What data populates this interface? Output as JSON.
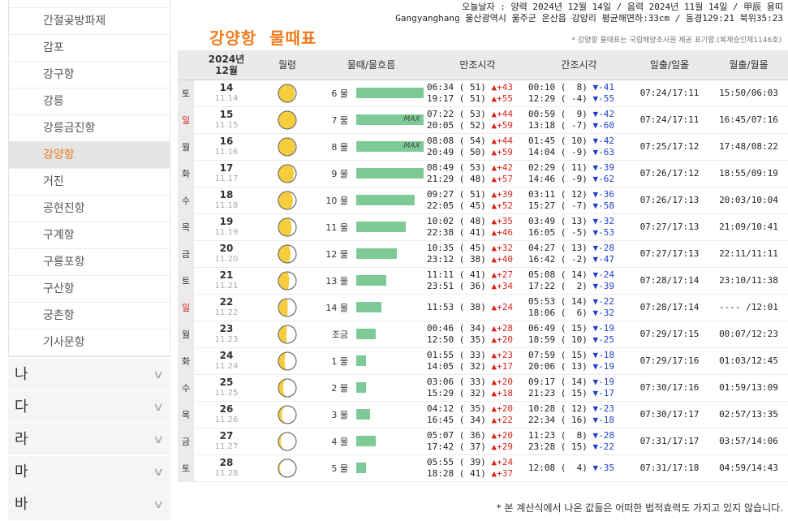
{
  "sidebar": {
    "harbors": [
      {
        "label": "간절곶방파제",
        "active": false
      },
      {
        "label": "감포",
        "active": false
      },
      {
        "label": "강구항",
        "active": false
      },
      {
        "label": "강릉",
        "active": false
      },
      {
        "label": "강릉금진항",
        "active": false
      },
      {
        "label": "강양항",
        "active": true
      },
      {
        "label": "거진",
        "active": false
      },
      {
        "label": "공현진항",
        "active": false
      },
      {
        "label": "구계항",
        "active": false
      },
      {
        "label": "구룡포항",
        "active": false
      },
      {
        "label": "구산항",
        "active": false
      },
      {
        "label": "궁촌항",
        "active": false
      },
      {
        "label": "기사문항",
        "active": false
      }
    ],
    "consonants": [
      "나",
      "다",
      "라",
      "마",
      "바"
    ]
  },
  "header": {
    "line1": "오늘날자 : 양력 2024년 12월 14일 / 음력 2024년 11월 14일 / 甲辰 용띠",
    "line2": "Gangyanghang 울산광역시 울주군 온산읍 강양리 평균해면하:33cm / 동경129:21 북위35:23"
  },
  "page": {
    "title": "강양항  물때표",
    "note": "* 강양항 물때표는 국립해양조사원 제공 표기함.(복제승인제1146호)",
    "footer": "* 본 계산식에서 나온 값들은 어떠한 법적효력도 가지고 있지 않습니다."
  },
  "table": {
    "headers": {
      "date_year": "2024년",
      "date_month": "12월",
      "moon": "월령",
      "flow": "물때/물흐름",
      "high": "만조시각",
      "low": "간조시각",
      "sun": "일출/일몰",
      "moonrise": "월출/월몰"
    },
    "rows": [
      {
        "weekday": "토",
        "weekday_color": "#333333",
        "day": "14",
        "lunar": "11.14",
        "moon_phase": 0.92,
        "flow": "6 물",
        "flow_level": 0.95,
        "max_label": "",
        "high": [
          {
            "time": "06:34",
            "height": "( 51)",
            "arrow": "▲",
            "diff": "+43"
          },
          {
            "time": "19:17",
            "height": "( 51)",
            "arrow": "▲",
            "diff": "+55"
          }
        ],
        "low": [
          {
            "time": "00:10",
            "height": "(  8)",
            "arrow": "▼",
            "diff": "-41"
          },
          {
            "time": "12:29",
            "height": "( -4)",
            "arrow": "▼",
            "diff": "-55"
          }
        ],
        "sun": "07:24/17:11",
        "moonrs": "15:50/06:03"
      },
      {
        "weekday": "일",
        "weekday_color": "#d6241b",
        "day": "15",
        "lunar": "11.15",
        "moon_phase": 1.0,
        "flow": "7 물",
        "flow_level": 0.95,
        "max_label": "MAX",
        "high": [
          {
            "time": "07:22",
            "height": "( 53)",
            "arrow": "▲",
            "diff": "+44"
          },
          {
            "time": "20:05",
            "height": "( 52)",
            "arrow": "▲",
            "diff": "+59"
          }
        ],
        "low": [
          {
            "time": "00:59",
            "height": "(  9)",
            "arrow": "▼",
            "diff": "-42"
          },
          {
            "time": "13:18",
            "height": "( -7)",
            "arrow": "▼",
            "diff": "-60"
          }
        ],
        "sun": "07:24/17:11",
        "moonrs": "16:45/07:16"
      },
      {
        "weekday": "월",
        "weekday_color": "#333333",
        "day": "16",
        "lunar": "11.16",
        "moon_phase": 0.95,
        "flow": "8 물",
        "flow_level": 0.95,
        "max_label": "MAX",
        "high": [
          {
            "time": "08:08",
            "height": "( 54)",
            "arrow": "▲",
            "diff": "+44"
          },
          {
            "time": "20:49",
            "height": "( 50)",
            "arrow": "▲",
            "diff": "+59"
          }
        ],
        "low": [
          {
            "time": "01:45",
            "height": "( 10)",
            "arrow": "▼",
            "diff": "-42"
          },
          {
            "time": "14:04",
            "height": "( -9)",
            "arrow": "▼",
            "diff": "-63"
          }
        ],
        "sun": "07:25/17:12",
        "moonrs": "17:48/08:22"
      },
      {
        "weekday": "화",
        "weekday_color": "#333333",
        "day": "17",
        "lunar": "11.17",
        "moon_phase": 0.88,
        "flow": "9 물",
        "flow_level": 0.95,
        "max_label": "",
        "high": [
          {
            "time": "08:49",
            "height": "( 53)",
            "arrow": "▲",
            "diff": "+42"
          },
          {
            "time": "21:29",
            "height": "( 48)",
            "arrow": "▲",
            "diff": "+57"
          }
        ],
        "low": [
          {
            "time": "02:29",
            "height": "( 11)",
            "arrow": "▼",
            "diff": "-39"
          },
          {
            "time": "14:46",
            "height": "( -9)",
            "arrow": "▼",
            "diff": "-62"
          }
        ],
        "sun": "07:26/17:12",
        "moonrs": "18:55/09:19"
      },
      {
        "weekday": "수",
        "weekday_color": "#333333",
        "day": "18",
        "lunar": "11.18",
        "moon_phase": 0.82,
        "flow": "10 물",
        "flow_level": 0.83,
        "max_label": "",
        "high": [
          {
            "time": "09:27",
            "height": "( 51)",
            "arrow": "▲",
            "diff": "+39"
          },
          {
            "time": "22:05",
            "height": "( 45)",
            "arrow": "▲",
            "diff": "+52"
          }
        ],
        "low": [
          {
            "time": "03:11",
            "height": "( 12)",
            "arrow": "▼",
            "diff": "-36"
          },
          {
            "time": "15:27",
            "height": "( -7)",
            "arrow": "▼",
            "diff": "-58"
          }
        ],
        "sun": "07:26/17:13",
        "moonrs": "20:03/10:04"
      },
      {
        "weekday": "목",
        "weekday_color": "#333333",
        "day": "19",
        "lunar": "11.19",
        "moon_phase": 0.75,
        "flow": "11 물",
        "flow_level": 0.7,
        "max_label": "",
        "high": [
          {
            "time": "10:02",
            "height": "( 48)",
            "arrow": "▲",
            "diff": "+35"
          },
          {
            "time": "22:38",
            "height": "( 41)",
            "arrow": "▲",
            "diff": "+46"
          }
        ],
        "low": [
          {
            "time": "03:49",
            "height": "( 13)",
            "arrow": "▼",
            "diff": "-32"
          },
          {
            "time": "16:05",
            "height": "( -5)",
            "arrow": "▼",
            "diff": "-53"
          }
        ],
        "sun": "07:27/17:13",
        "moonrs": "21:09/10:41"
      },
      {
        "weekday": "금",
        "weekday_color": "#333333",
        "day": "20",
        "lunar": "11.20",
        "moon_phase": 0.68,
        "flow": "12 물",
        "flow_level": 0.57,
        "max_label": "",
        "high": [
          {
            "time": "10:35",
            "height": "( 45)",
            "arrow": "▲",
            "diff": "+32"
          },
          {
            "time": "23:12",
            "height": "( 38)",
            "arrow": "▲",
            "diff": "+40"
          }
        ],
        "low": [
          {
            "time": "04:27",
            "height": "( 13)",
            "arrow": "▼",
            "diff": "-28"
          },
          {
            "time": "16:42",
            "height": "( -2)",
            "arrow": "▼",
            "diff": "-47"
          }
        ],
        "sun": "07:27/17:13",
        "moonrs": "22:11/11:11"
      },
      {
        "weekday": "토",
        "weekday_color": "#333333",
        "day": "21",
        "lunar": "11.21",
        "moon_phase": 0.6,
        "flow": "13 물",
        "flow_level": 0.43,
        "max_label": "",
        "high": [
          {
            "time": "11:11",
            "height": "( 41)",
            "arrow": "▲",
            "diff": "+27"
          },
          {
            "time": "23:51",
            "height": "( 36)",
            "arrow": "▲",
            "diff": "+34"
          }
        ],
        "low": [
          {
            "time": "05:08",
            "height": "( 14)",
            "arrow": "▼",
            "diff": "-24"
          },
          {
            "time": "17:22",
            "height": "(  2)",
            "arrow": "▼",
            "diff": "-39"
          }
        ],
        "sun": "07:28/17:14",
        "moonrs": "23:10/11:38"
      },
      {
        "weekday": "일",
        "weekday_color": "#d6241b",
        "day": "22",
        "lunar": "11.22",
        "moon_phase": 0.52,
        "flow": "14 물",
        "flow_level": 0.36,
        "max_label": "",
        "high": [
          {
            "time": "11:53",
            "height": "( 38)",
            "arrow": "▲",
            "diff": "+24"
          }
        ],
        "low": [
          {
            "time": "05:53",
            "height": "( 14)",
            "arrow": "▼",
            "diff": "-22"
          },
          {
            "time": "18:06",
            "height": "(  6)",
            "arrow": "▼",
            "diff": "-32"
          }
        ],
        "sun": "07:28/17:14",
        "moonrs": "---- /12:01"
      },
      {
        "weekday": "월",
        "weekday_color": "#333333",
        "day": "23",
        "lunar": "11.23",
        "moon_phase": 0.45,
        "flow": "조금",
        "flow_level": 0.28,
        "max_label": "",
        "high": [
          {
            "time": "00:46",
            "height": "( 34)",
            "arrow": "▲",
            "diff": "+28"
          },
          {
            "time": "12:50",
            "height": "( 35)",
            "arrow": "▲",
            "diff": "+20"
          }
        ],
        "low": [
          {
            "time": "06:49",
            "height": "( 15)",
            "arrow": "▼",
            "diff": "-19"
          },
          {
            "time": "18:59",
            "height": "( 10)",
            "arrow": "▼",
            "diff": "-25"
          }
        ],
        "sun": "07:29/17:15",
        "moonrs": "00:07/12:23"
      },
      {
        "weekday": "화",
        "weekday_color": "#333333",
        "day": "24",
        "lunar": "11.24",
        "moon_phase": 0.35,
        "flow": "1 물",
        "flow_level": 0.14,
        "max_label": "",
        "high": [
          {
            "time": "01:55",
            "height": "( 33)",
            "arrow": "▲",
            "diff": "+23"
          },
          {
            "time": "14:05",
            "height": "( 32)",
            "arrow": "▲",
            "diff": "+17"
          }
        ],
        "low": [
          {
            "time": "07:59",
            "height": "( 15)",
            "arrow": "▼",
            "diff": "-18"
          },
          {
            "time": "20:06",
            "height": "( 13)",
            "arrow": "▼",
            "diff": "-19"
          }
        ],
        "sun": "07:29/17:16",
        "moonrs": "01:03/12:45"
      },
      {
        "weekday": "수",
        "weekday_color": "#333333",
        "day": "25",
        "lunar": "11.25",
        "moon_phase": 0.27,
        "flow": "2 물",
        "flow_level": 0.14,
        "max_label": "",
        "high": [
          {
            "time": "03:06",
            "height": "( 33)",
            "arrow": "▲",
            "diff": "+20"
          },
          {
            "time": "15:29",
            "height": "( 32)",
            "arrow": "▲",
            "diff": "+18"
          }
        ],
        "low": [
          {
            "time": "09:17",
            "height": "( 14)",
            "arrow": "▼",
            "diff": "-19"
          },
          {
            "time": "21:23",
            "height": "( 15)",
            "arrow": "▼",
            "diff": "-17"
          }
        ],
        "sun": "07:30/17:16",
        "moonrs": "01:59/13:09"
      },
      {
        "weekday": "목",
        "weekday_color": "#333333",
        "day": "26",
        "lunar": "11.26",
        "moon_phase": 0.2,
        "flow": "3 물",
        "flow_level": 0.2,
        "max_label": "",
        "high": [
          {
            "time": "04:12",
            "height": "( 35)",
            "arrow": "▲",
            "diff": "+20"
          },
          {
            "time": "16:45",
            "height": "( 34)",
            "arrow": "▲",
            "diff": "+22"
          }
        ],
        "low": [
          {
            "time": "10:28",
            "height": "( 12)",
            "arrow": "▼",
            "diff": "-23"
          },
          {
            "time": "22:34",
            "height": "( 16)",
            "arrow": "▼",
            "diff": "-18"
          }
        ],
        "sun": "07:30/17:17",
        "moonrs": "02:57/13:35"
      },
      {
        "weekday": "금",
        "weekday_color": "#333333",
        "day": "27",
        "lunar": "11.27",
        "moon_phase": 0.13,
        "flow": "4 물",
        "flow_level": 0.28,
        "max_label": "",
        "high": [
          {
            "time": "05:07",
            "height": "( 36)",
            "arrow": "▲",
            "diff": "+20"
          },
          {
            "time": "17:42",
            "height": "( 37)",
            "arrow": "▲",
            "diff": "+29"
          }
        ],
        "low": [
          {
            "time": "11:23",
            "height": "(  8)",
            "arrow": "▼",
            "diff": "-28"
          },
          {
            "time": "23:28",
            "height": "( 15)",
            "arrow": "▼",
            "diff": "-22"
          }
        ],
        "sun": "07:31/17:17",
        "moonrs": "03:57/14:06"
      },
      {
        "weekday": "토",
        "weekday_color": "#333333",
        "day": "28",
        "lunar": "11.28",
        "moon_phase": 0.08,
        "flow": "5 물",
        "flow_level": 0.14,
        "max_label": "",
        "high": [
          {
            "time": "05:55",
            "height": "( 39)",
            "arrow": "▲",
            "diff": "+24"
          },
          {
            "time": "18:28",
            "height": "( 41)",
            "arrow": "▲",
            "diff": "+37"
          }
        ],
        "low": [
          {
            "time": "12:08",
            "height": "(  4)",
            "arrow": "▼",
            "diff": "-35"
          }
        ],
        "sun": "07:31/17:18",
        "moonrs": "04:59/14:43"
      }
    ]
  },
  "colors": {
    "accent": "#ef7b1c",
    "bar": "#7dca96",
    "moon": "#f6cd3c",
    "up": "#d6241b",
    "down": "#1f3fc7",
    "sunday": "#d6241b"
  }
}
